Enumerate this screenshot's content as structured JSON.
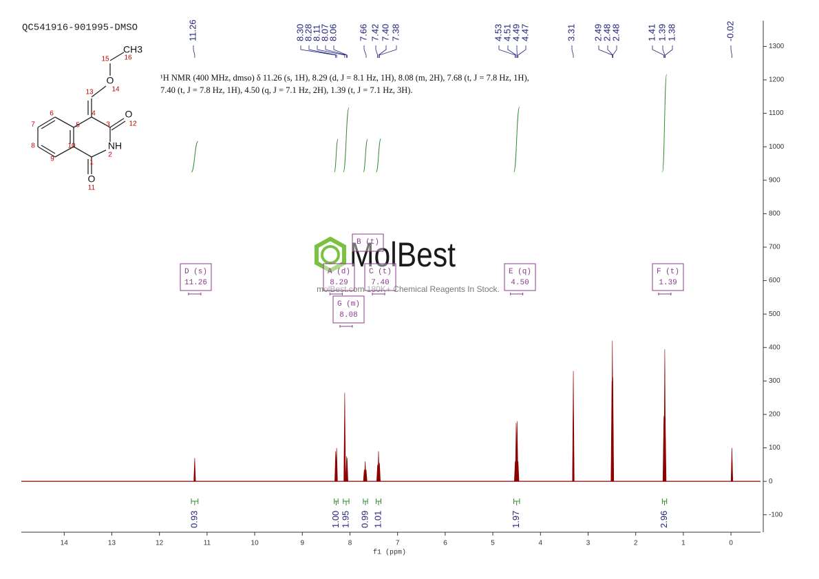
{
  "sample": "QC541916-901995-DMSO",
  "description": "¹H NMR (400 MHz, dmso) δ 11.26 (s, 1H), 8.29 (d, J = 8.1 Hz, 1H), 8.08 (m, 2H), 7.68 (t, J = 7.8 Hz, 1H), 7.40 (t, J = 7.8 Hz, 1H), 4.50 (q, J = 7.1 Hz, 2H), 1.39 (t, J = 7.1 Hz, 3H).",
  "watermark": {
    "brand": "MolBest",
    "tagline": "molBest.com 180K+ Chemical Reagents In Stock."
  },
  "structure": {
    "atoms": [
      {
        "symbol": "CH3",
        "number": 16
      },
      {
        "number": 15
      },
      {
        "symbol": "O",
        "number": 14
      },
      {
        "number": 13
      },
      {
        "number": 4
      },
      {
        "number": 3
      },
      {
        "symbol": "O",
        "number": 12
      },
      {
        "symbol": "NH",
        "number": 2
      },
      {
        "number": 1
      },
      {
        "symbol": "O",
        "number": 11
      },
      {
        "number": 10
      },
      {
        "number": 5
      },
      {
        "number": 6
      },
      {
        "number": 7
      },
      {
        "number": 8
      },
      {
        "number": 9
      }
    ]
  },
  "chart_data": {
    "type": "nmr",
    "x_label": "f1 (ppm)",
    "xlim": [
      14.9,
      -0.62
    ],
    "ylim": [
      -152,
      1377
    ],
    "xticks": [
      14,
      13,
      12,
      11,
      10,
      9,
      8,
      7,
      6,
      5,
      4,
      3,
      2,
      1,
      0
    ],
    "yticks": [
      -100,
      0,
      100,
      200,
      300,
      400,
      500,
      600,
      700,
      800,
      900,
      1000,
      1100,
      1200,
      1300
    ],
    "series": [
      {
        "color": "#8b0000",
        "x": [
          11.26,
          8.3,
          8.28,
          8.11,
          8.07,
          8.06,
          7.7,
          7.68,
          7.66,
          7.42,
          7.4,
          7.38,
          4.53,
          4.51,
          4.49,
          4.47,
          3.31,
          2.5,
          2.49,
          2.48,
          1.41,
          1.39,
          1.38,
          -0.02
        ],
        "values": [
          70,
          90,
          100,
          265,
          75,
          70,
          35,
          60,
          35,
          50,
          90,
          55,
          60,
          175,
          180,
          60,
          330,
          300,
          420,
          310,
          195,
          395,
          190,
          100
        ]
      }
    ],
    "peak_labels": [
      {
        "value": 11.26,
        "label": "11.26"
      },
      {
        "value": 8.3,
        "label": "8.30"
      },
      {
        "value": 8.28,
        "label": "8.28"
      },
      {
        "value": 8.11,
        "label": "8.11"
      },
      {
        "value": 8.07,
        "label": "8.07"
      },
      {
        "value": 8.06,
        "label": "8.06"
      },
      {
        "value": 7.66,
        "label": "7.66"
      },
      {
        "value": 7.42,
        "label": "7.42"
      },
      {
        "value": 7.4,
        "label": "7.40"
      },
      {
        "value": 7.38,
        "label": "7.38"
      },
      {
        "value": 4.53,
        "label": "4.53"
      },
      {
        "value": 4.51,
        "label": "4.51"
      },
      {
        "value": 4.49,
        "label": "4.49"
      },
      {
        "value": 4.47,
        "label": "4.47"
      },
      {
        "value": 3.31,
        "label": "3.31"
      },
      {
        "value": 2.49,
        "label": "2.49"
      },
      {
        "value": 2.48,
        "label": "2.48"
      },
      {
        "value": 2.48,
        "label": "2.48"
      },
      {
        "value": 1.41,
        "label": "1.41"
      },
      {
        "value": 1.39,
        "label": "1.39"
      },
      {
        "value": 1.38,
        "label": "1.38"
      },
      {
        "value": -0.02,
        "label": "-0.02"
      }
    ],
    "multiplets": [
      {
        "name": "D (s)",
        "shift": 11.26
      },
      {
        "name": "A (d)",
        "shift": 8.29
      },
      {
        "name": "G (m)",
        "shift": 8.08
      },
      {
        "name": "B (t)"
      },
      {
        "name": "C (t)",
        "shift": {
          "value": 7.4,
          "label": "7.40"
        }
      },
      {
        "name": "E (q)",
        "shift": {
          "value": 4.5,
          "label": "4.50"
        }
      },
      {
        "name": "F (t)",
        "shift": 1.39
      }
    ],
    "integrals": {
      "ranges": [
        [
          11.33,
          11.19
        ],
        [
          8.33,
          8.25
        ],
        [
          8.14,
          8.02
        ],
        [
          7.72,
          7.63
        ],
        [
          7.45,
          7.35
        ],
        [
          4.56,
          4.44
        ],
        [
          1.44,
          1.35
        ]
      ],
      "values": [
        0.93,
        1,
        1.95,
        0.99,
        1.01,
        1.97,
        2.96
      ],
      "value_labels": [
        "0.93",
        "1.00",
        "1.95",
        "0.99",
        "1.01",
        "1.97",
        "2.96"
      ],
      "color": "#2e8b2e"
    }
  }
}
